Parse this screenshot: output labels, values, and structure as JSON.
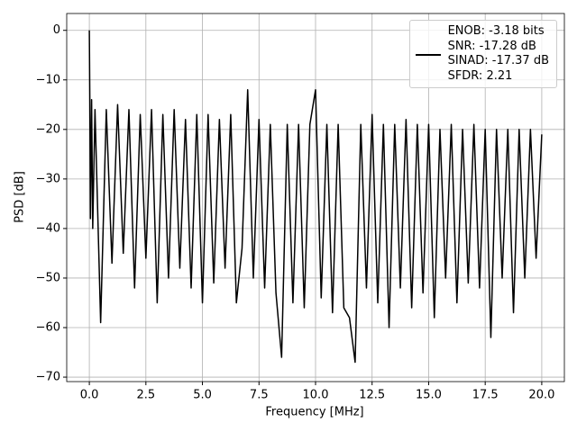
{
  "chart_data": {
    "type": "line",
    "xlabel": "Frequency [MHz]",
    "ylabel": "PSD [dB]",
    "xlim": [
      -1,
      21
    ],
    "ylim": [
      -70.9,
      3.4
    ],
    "xticks": [
      {
        "value": 0,
        "label": "0.0"
      },
      {
        "value": 2.5,
        "label": "2.5"
      },
      {
        "value": 5,
        "label": "5.0"
      },
      {
        "value": 7.5,
        "label": "7.5"
      },
      {
        "value": 10,
        "label": "10.0"
      },
      {
        "value": 12.5,
        "label": "12.5"
      },
      {
        "value": 15,
        "label": "15.0"
      },
      {
        "value": 17.5,
        "label": "17.5"
      },
      {
        "value": 20,
        "label": "20.0"
      }
    ],
    "yticks": [
      0,
      {
        "value": -10,
        "label": "−10"
      },
      {
        "value": -20,
        "label": "−20"
      },
      {
        "value": -30,
        "label": "−30"
      },
      {
        "value": -40,
        "label": "−40"
      },
      {
        "value": -50,
        "label": "−50"
      },
      {
        "value": -60,
        "label": "−60"
      },
      {
        "value": -70,
        "label": "−70"
      }
    ],
    "grid": true,
    "legend": "upper right",
    "x": [
      0,
      0.02,
      0.05,
      0.1,
      0.15,
      0.25,
      0.5,
      0.75,
      1,
      1.25,
      1.5,
      1.75,
      2,
      2.25,
      2.5,
      2.75,
      3,
      3.25,
      3.5,
      3.75,
      4,
      4.25,
      4.5,
      4.75,
      5,
      5.25,
      5.5,
      5.75,
      6,
      6.25,
      6.5,
      6.75,
      7,
      7.25,
      7.5,
      7.75,
      8,
      8.25,
      8.5,
      8.75,
      9,
      9.25,
      9.5,
      9.75,
      10,
      10.25,
      10.5,
      10.75,
      11,
      11.25,
      11.5,
      11.75,
      12,
      12.25,
      12.5,
      12.75,
      13,
      13.25,
      13.5,
      13.75,
      14,
      14.25,
      14.5,
      14.75,
      15,
      15.25,
      15.5,
      15.75,
      16,
      16.25,
      16.5,
      16.75,
      17,
      17.25,
      17.5,
      17.75,
      18,
      18.25,
      18.5,
      18.75,
      19,
      19.25,
      19.5,
      19.75,
      20
    ],
    "series": [
      {
        "name": "ENOB: -3.18 bits\nSNR: -17.28 dB\nSINAD: -17.37 dB\nSFDR: 2.21",
        "color": "#000000",
        "values": [
          0,
          -13,
          -38,
          -14,
          -40,
          -16,
          -59,
          -16,
          -47,
          -15,
          -45,
          -16,
          -52,
          -17,
          -46,
          -16,
          -55,
          -17,
          -50,
          -16,
          -48,
          -18,
          -52,
          -17,
          -55,
          -17,
          -51,
          -18,
          -48,
          -17,
          -55,
          -44,
          -12,
          -50,
          -18,
          -52,
          -19,
          -53,
          -66,
          -19,
          -55,
          -19,
          -56,
          -19,
          -12,
          -54,
          -19,
          -57,
          -19,
          -56,
          -58,
          -67,
          -19,
          -52,
          -17,
          -55,
          -19,
          -60,
          -19,
          -52,
          -18,
          -56,
          -19,
          -53,
          -19,
          -58,
          -20,
          -50,
          -19,
          -55,
          -20,
          -51,
          -19,
          -52,
          -20,
          -62,
          -20,
          -50,
          -20,
          -57,
          -20,
          -50,
          -20,
          -46,
          -21
        ]
      }
    ]
  }
}
